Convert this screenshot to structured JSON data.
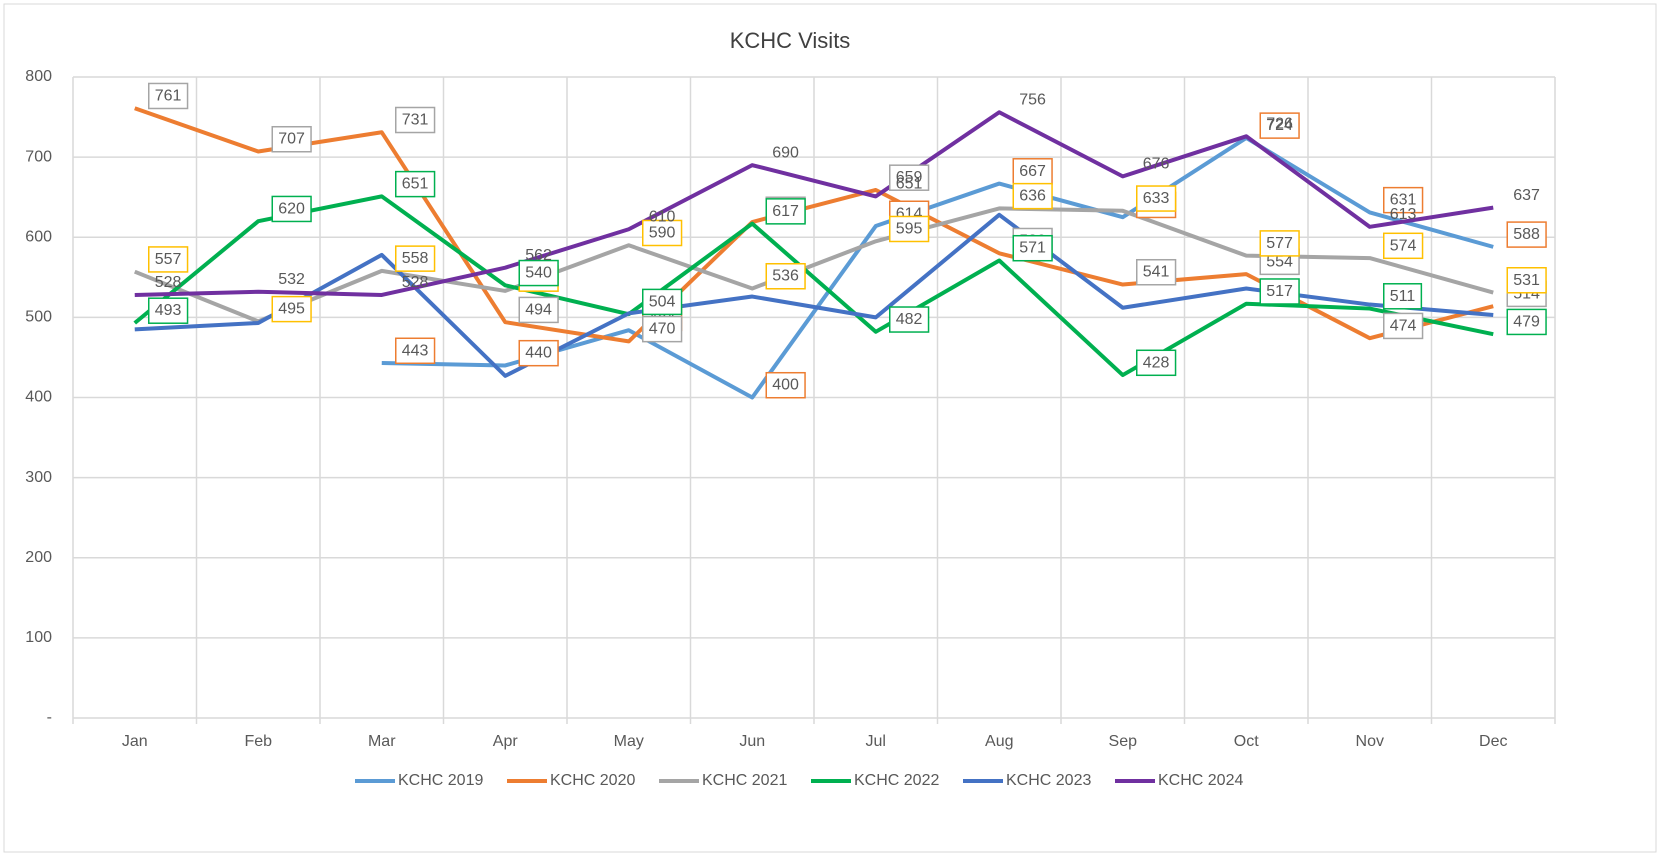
{
  "chart_data": {
    "type": "line",
    "title": "KCHC Visits",
    "categories": [
      "Jan",
      "Feb",
      "Mar",
      "Apr",
      "May",
      "Jun",
      "Jul",
      "Aug",
      "Sep",
      "Oct",
      "Nov",
      "Dec"
    ],
    "ylim": [
      0,
      800
    ],
    "yticks": [
      {
        "value": 0,
        "label": "-"
      },
      100,
      200,
      300,
      400,
      500,
      600,
      700,
      800
    ],
    "grid": true,
    "legend": "bottom",
    "series": [
      {
        "name": "KCHC 2019",
        "color": "#5b9bd5",
        "label_box": "#ed7d31",
        "values": [
          null,
          null,
          443,
          440,
          484,
          400,
          614,
          667,
          625,
          724,
          631,
          588
        ]
      },
      {
        "name": "KCHC 2020",
        "color": "#ed7d31",
        "label_box": "#a5a5a5",
        "values": [
          761,
          707,
          731,
          494,
          470,
          619,
          659,
          580,
          541,
          554,
          474,
          514
        ]
      },
      {
        "name": "KCHC 2021",
        "color": "#a5a5a5",
        "label_box": "#ffc000",
        "values": [
          557,
          495,
          558,
          533,
          590,
          536,
          595,
          636,
          633,
          577,
          574,
          531
        ]
      },
      {
        "name": "KCHC 2022",
        "color": "#00b050",
        "label_box": "#00b050",
        "values": [
          493,
          620,
          651,
          540,
          504,
          617,
          482,
          571,
          428,
          517,
          511,
          479
        ]
      },
      {
        "name": "KCHC 2023",
        "color": "#4472c4",
        "data_labels": false,
        "values": [
          485,
          493,
          578,
          427,
          505,
          526,
          500,
          628,
          512,
          536,
          516,
          503
        ]
      },
      {
        "name": "KCHC 2024",
        "color": "#7030a0",
        "values": [
          528,
          532,
          528,
          562,
          610,
          690,
          651,
          756,
          676,
          726,
          613,
          637
        ]
      }
    ]
  }
}
